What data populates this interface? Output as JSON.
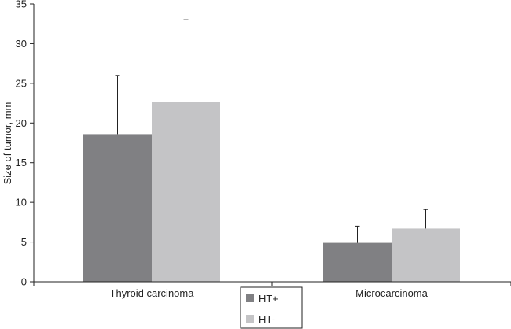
{
  "chart_data": {
    "type": "bar",
    "ylabel": "Size of tumor, mm",
    "xlabel": "",
    "ylim": [
      0,
      35
    ],
    "yticks": [
      0,
      5,
      10,
      15,
      20,
      25,
      30,
      35
    ],
    "categories": [
      "Thyroid carcinoma",
      "Microcarcinoma"
    ],
    "series": [
      {
        "name": "HT+",
        "values": [
          18.6,
          4.9
        ],
        "error": [
          7.4,
          2.1
        ],
        "color": "#808083"
      },
      {
        "name": "HT-",
        "values": [
          22.7,
          6.7
        ],
        "error": [
          10.3,
          2.4
        ],
        "color": "#c4c4c6"
      }
    ],
    "legend": "bottom-center",
    "grid": false
  }
}
